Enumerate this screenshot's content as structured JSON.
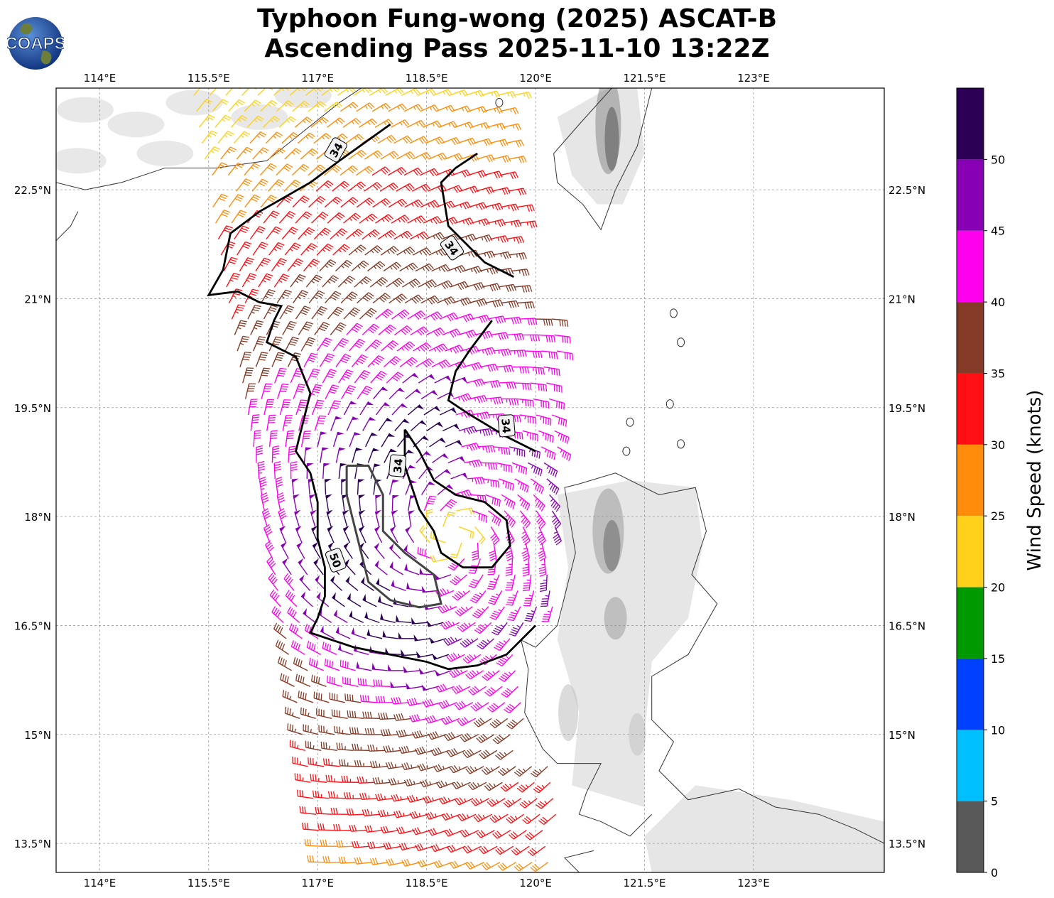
{
  "title": {
    "line1": "Typhoon Fung-wong (2025) ASCAT-B",
    "line2": "Ascending Pass 2025-11-10 13:22Z"
  },
  "logo": {
    "text": "COAPS"
  },
  "map": {
    "lon_ticks": [
      "114°E",
      "115.5°E",
      "117°E",
      "118.5°E",
      "120°E",
      "121.5°E",
      "123°E"
    ],
    "lat_ticks": [
      "22.5°N",
      "21°N",
      "19.5°N",
      "18°N",
      "16.5°N",
      "15°N",
      "13.5°N"
    ],
    "contour_labels": [
      "34",
      "34",
      "34",
      "34",
      "50"
    ],
    "gridlines": true,
    "terrain_shading": true
  },
  "colorbar": {
    "label": "Wind Speed (knots)",
    "tick_labels": [
      "0",
      "5",
      "10",
      "15",
      "20",
      "25",
      "30",
      "35",
      "40",
      "45",
      "50"
    ],
    "colors": [
      "#595959",
      "#00bfff",
      "#0040ff",
      "#009900",
      "#ffd11a",
      "#ff8c0a",
      "#ff0f14",
      "#853a27",
      "#ff00ee",
      "#8800b3",
      "#2b0055"
    ]
  },
  "chart_data": {
    "type": "wind-barb-map",
    "xlim": [
      113.4,
      124.8
    ],
    "ylim": [
      13.1,
      23.9
    ],
    "xticks": [
      114,
      115.5,
      117,
      118.5,
      120,
      121.5,
      123
    ],
    "yticks": [
      22.5,
      21,
      19.5,
      18,
      16.5,
      15,
      13.5
    ],
    "center": [
      118.85,
      17.75
    ],
    "wind_speed_bins_knots": [
      0,
      5,
      10,
      15,
      20,
      25,
      30,
      35,
      40,
      45,
      50
    ],
    "contours_knots": [
      34,
      50
    ]
  }
}
